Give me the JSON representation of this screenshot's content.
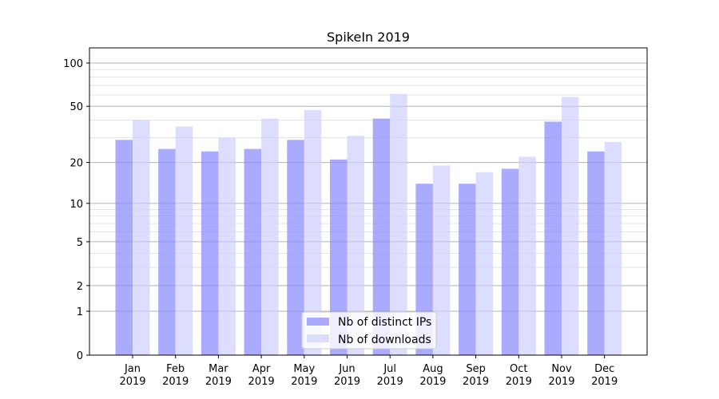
{
  "chart_data": {
    "type": "bar",
    "title": "SpikeIn 2019",
    "xlabel": "",
    "ylabel": "",
    "yscale": "symlog (log10(y+1))",
    "ylim": [
      0,
      120
    ],
    "yticks": [
      0,
      1,
      2,
      5,
      10,
      20,
      50,
      100
    ],
    "ytick_labels": [
      "0",
      "1",
      "2",
      "5",
      "10",
      "20",
      "50",
      "100"
    ],
    "minor_yticks": [
      3,
      4,
      6,
      7,
      8,
      9,
      30,
      40,
      60,
      70,
      80,
      90
    ],
    "grid": true,
    "categories": [
      "Jan\n2019",
      "Feb\n2019",
      "Mar\n2019",
      "Apr\n2019",
      "May\n2019",
      "Jun\n2019",
      "Jul\n2019",
      "Aug\n2019",
      "Sep\n2019",
      "Oct\n2019",
      "Nov\n2019",
      "Dec\n2019"
    ],
    "category_lines": [
      [
        "Jan",
        "2019"
      ],
      [
        "Feb",
        "2019"
      ],
      [
        "Mar",
        "2019"
      ],
      [
        "Apr",
        "2019"
      ],
      [
        "May",
        "2019"
      ],
      [
        "Jun",
        "2019"
      ],
      [
        "Jul",
        "2019"
      ],
      [
        "Aug",
        "2019"
      ],
      [
        "Sep",
        "2019"
      ],
      [
        "Oct",
        "2019"
      ],
      [
        "Nov",
        "2019"
      ],
      [
        "Dec",
        "2019"
      ]
    ],
    "series": [
      {
        "name": "Nb of distinct IPs",
        "color": "#aaaaff",
        "values": [
          29,
          25,
          24,
          25,
          29,
          21,
          41,
          14,
          14,
          18,
          39,
          24
        ]
      },
      {
        "name": "Nb of downloads",
        "color": "#ddddff",
        "values": [
          40,
          36,
          30,
          41,
          47,
          31,
          61,
          19,
          17,
          22,
          58,
          28
        ]
      }
    ],
    "legend": {
      "position": "bottom-center",
      "entries": [
        "Nb of distinct IPs",
        "Nb of downloads"
      ]
    }
  }
}
